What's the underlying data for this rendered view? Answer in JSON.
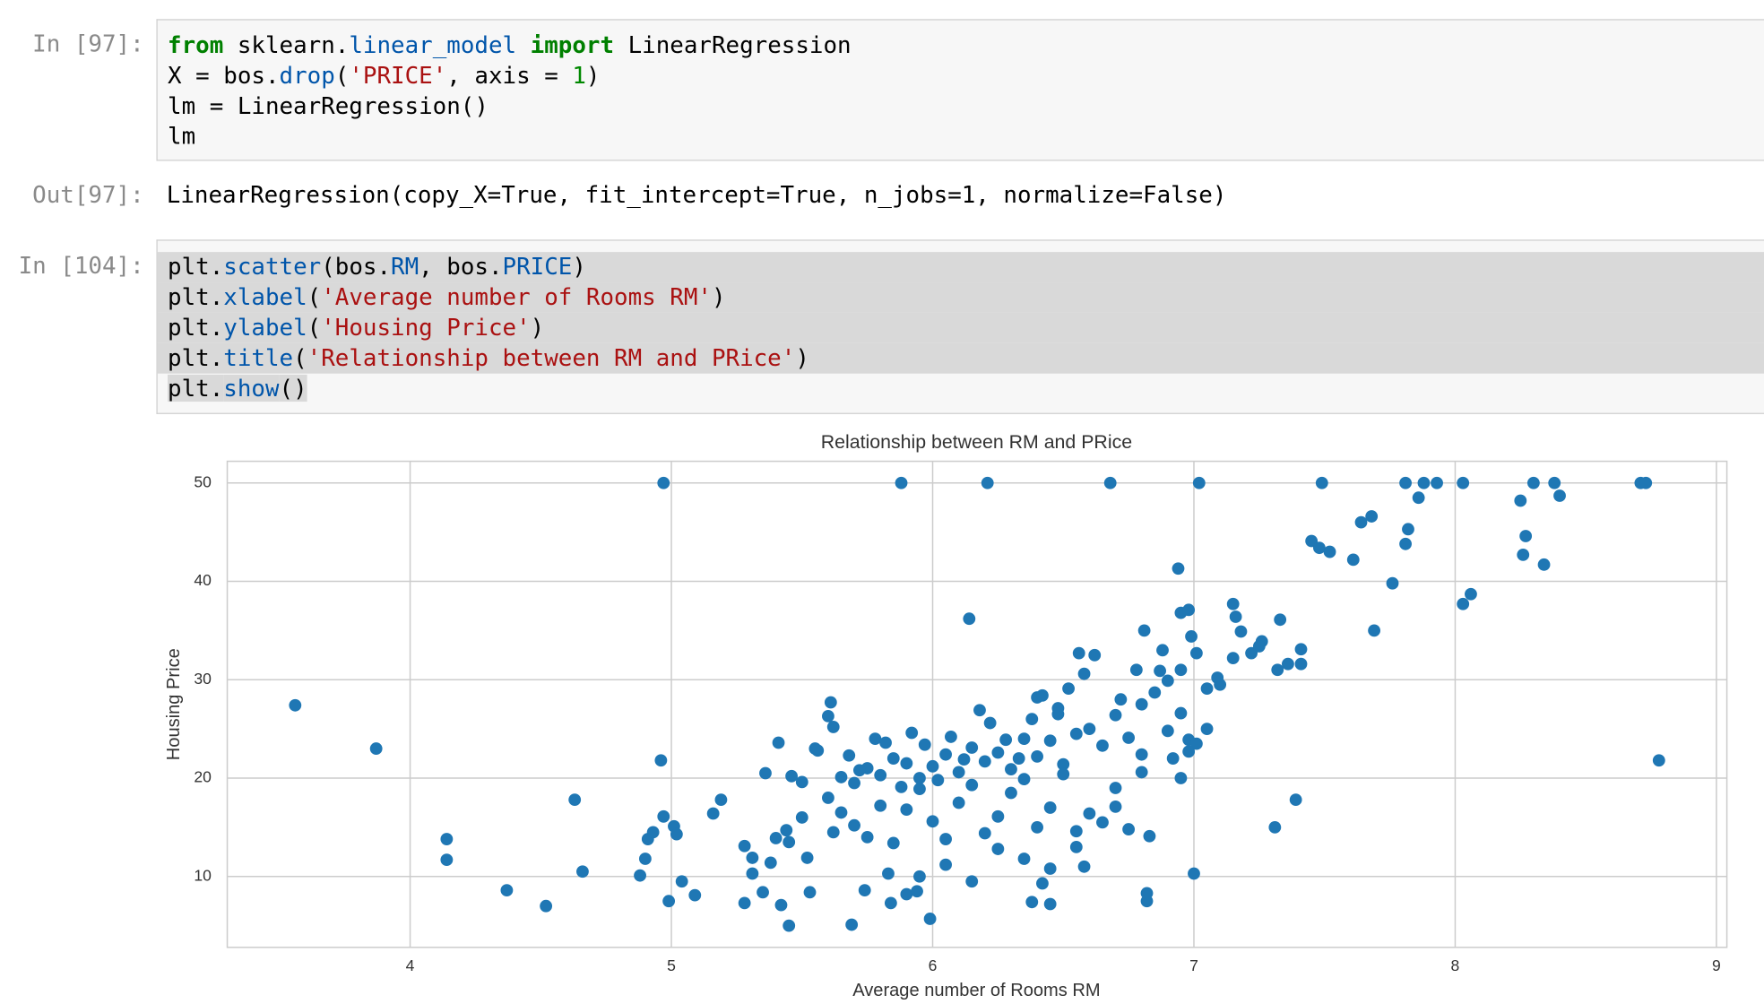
{
  "cells": [
    {
      "prompt": "In [97]:",
      "code": [
        [
          {
            "t": "from",
            "c": "#008000",
            "b": true
          },
          {
            "t": " sklearn.",
            "c": "#000000"
          },
          {
            "t": "linear_model",
            "c": "#0055aa"
          },
          {
            "t": " ",
            "c": "#000000"
          },
          {
            "t": "import",
            "c": "#008000",
            "b": true
          },
          {
            "t": " LinearRegression",
            "c": "#000000"
          }
        ],
        [
          {
            "t": "X = bos.",
            "c": "#000000"
          },
          {
            "t": "drop",
            "c": "#0055aa"
          },
          {
            "t": "(",
            "c": "#000000"
          },
          {
            "t": "'PRICE'",
            "c": "#aa1111"
          },
          {
            "t": ", axis = ",
            "c": "#000000"
          },
          {
            "t": "1",
            "c": "#008800"
          },
          {
            "t": ")",
            "c": "#000000"
          }
        ],
        [
          {
            "t": "lm = LinearRegression()",
            "c": "#000000"
          }
        ],
        [
          {
            "t": "lm",
            "c": "#000000"
          }
        ]
      ]
    },
    {
      "prompt": "Out[97]:",
      "output": "LinearRegression(copy_X=True, fit_intercept=True, n_jobs=1, normalize=False)"
    },
    {
      "prompt": "In [104]:",
      "code": [
        [
          {
            "t": "plt.",
            "c": "#000000"
          },
          {
            "t": "scatter",
            "c": "#0055aa"
          },
          {
            "t": "(bos.",
            "c": "#000000"
          },
          {
            "t": "RM",
            "c": "#0055aa"
          },
          {
            "t": ", bos.",
            "c": "#000000"
          },
          {
            "t": "PRICE",
            "c": "#0055aa"
          },
          {
            "t": ")",
            "c": "#000000"
          }
        ],
        [
          {
            "t": "plt.",
            "c": "#000000"
          },
          {
            "t": "xlabel",
            "c": "#0055aa"
          },
          {
            "t": "(",
            "c": "#000000"
          },
          {
            "t": "'Average number of Rooms RM'",
            "c": "#aa1111"
          },
          {
            "t": ")",
            "c": "#000000"
          }
        ],
        [
          {
            "t": "plt.",
            "c": "#000000"
          },
          {
            "t": "ylabel",
            "c": "#0055aa"
          },
          {
            "t": "(",
            "c": "#000000"
          },
          {
            "t": "'Housing Price'",
            "c": "#aa1111"
          },
          {
            "t": ")",
            "c": "#000000"
          }
        ],
        [
          {
            "t": "plt.",
            "c": "#000000"
          },
          {
            "t": "title",
            "c": "#0055aa"
          },
          {
            "t": "(",
            "c": "#000000"
          },
          {
            "t": "'Relationship between RM and PRice'",
            "c": "#aa1111"
          },
          {
            "t": ")",
            "c": "#000000"
          }
        ],
        [
          {
            "t": "plt.",
            "c": "#000000"
          },
          {
            "t": "show",
            "c": "#0055aa"
          },
          {
            "t": "()",
            "c": "#000000"
          }
        ]
      ]
    }
  ],
  "chart_data": {
    "type": "scatter",
    "title": "Relationship between RM and PRice",
    "xlabel": "Average number of Rooms RM",
    "ylabel": "Housing Price",
    "color": "#1f77b4",
    "grid": true,
    "xlim": [
      3.3,
      9.04
    ],
    "ylim": [
      2.8,
      52.2
    ],
    "xticks": [
      4,
      5,
      6,
      7,
      8,
      9
    ],
    "yticks": [
      10,
      20,
      30,
      40,
      50
    ],
    "x": [
      3.56,
      3.87,
      4.14,
      4.14,
      4.37,
      4.52,
      4.63,
      4.66,
      4.88,
      4.9,
      4.91,
      4.93,
      4.96,
      4.97,
      4.99,
      5.01,
      5.02,
      5.04,
      5.09,
      5.16,
      5.19,
      5.28,
      5.28,
      5.31,
      5.31,
      5.35,
      5.36,
      5.38,
      5.4,
      5.41,
      5.42,
      5.44,
      5.45,
      5.46,
      5.52,
      5.53,
      5.56,
      5.61,
      5.6,
      5.62,
      5.65,
      5.69,
      5.74,
      5.83,
      5.84,
      5.9,
      5.94,
      5.99,
      5.88,
      6.14,
      4.97,
      6.21,
      6.68,
      7.02,
      7.49,
      7.81,
      7.88,
      7.93,
      8.03,
      8.3,
      8.38,
      8.71,
      8.73,
      8.78,
      8.4,
      8.25,
      8.27,
      8.26,
      8.34,
      7.86,
      7.82,
      7.81,
      7.68,
      7.64,
      7.76,
      7.69,
      7.61,
      7.45,
      7.48,
      7.52,
      8.06,
      8.03,
      6.94,
      7.41,
      7.41,
      7.36,
      7.32,
      7.39,
      7.31,
      7.0,
      6.82,
      6.82,
      6.83,
      6.95,
      6.98,
      7.15,
      7.16,
      7.33,
      6.99,
      6.81,
      6.87,
      6.95,
      6.98,
      7.01,
      7.05,
      7.09,
      7.15,
      7.22,
      7.26,
      7.01,
      6.56,
      6.48,
      6.4,
      5.6,
      5.7,
      5.75,
      5.8,
      5.85,
      5.9,
      5.95,
      6.0,
      6.05,
      6.1,
      6.15,
      6.2,
      6.25,
      6.3,
      6.35,
      6.4,
      6.45,
      6.5,
      6.55,
      6.6,
      6.65,
      6.7,
      6.75,
      6.8,
      6.85,
      6.9,
      6.95,
      5.65,
      5.7,
      5.75,
      5.8,
      5.85,
      5.9,
      5.95,
      6.0,
      6.05,
      6.1,
      6.15,
      6.2,
      6.25,
      6.3,
      6.35,
      6.4,
      6.45,
      6.5,
      6.55,
      6.6,
      6.7,
      6.8,
      6.9,
      5.5,
      5.55,
      5.62,
      5.68,
      5.72,
      5.78,
      5.82,
      5.88,
      5.92,
      5.97,
      6.02,
      6.07,
      6.12,
      6.18,
      6.22,
      6.28,
      6.33,
      6.38,
      6.42,
      6.48,
      6.52,
      6.58,
      6.62,
      6.72,
      6.78,
      6.88,
      5.45,
      5.5,
      6.25,
      6.35,
      6.45,
      6.55,
      6.65,
      6.75,
      6.15,
      6.05,
      5.95,
      6.38,
      6.45,
      6.42,
      6.58,
      7.18,
      7.25,
      7.05,
      7.1,
      6.95,
      6.98,
      6.8,
      6.7,
      6.92
    ],
    "values": [
      27.4,
      23.0,
      13.8,
      11.7,
      8.6,
      7.0,
      17.8,
      10.5,
      10.1,
      11.8,
      13.8,
      14.5,
      21.8,
      16.1,
      7.5,
      15.1,
      14.3,
      9.5,
      8.1,
      16.4,
      17.8,
      13.1,
      7.3,
      11.9,
      10.3,
      8.4,
      20.5,
      11.4,
      13.9,
      23.6,
      7.1,
      14.7,
      5.0,
      20.2,
      11.9,
      8.4,
      22.8,
      27.7,
      26.3,
      14.5,
      20.1,
      5.1,
      8.6,
      10.3,
      7.3,
      8.2,
      8.5,
      5.7,
      50,
      36.2,
      50,
      50,
      50,
      50,
      50,
      50,
      50,
      50,
      50,
      50,
      50,
      50,
      50,
      21.8,
      48.7,
      48.2,
      44.6,
      42.7,
      41.7,
      48.5,
      45.3,
      43.8,
      46.6,
      46.0,
      39.8,
      35.0,
      42.2,
      44.1,
      43.4,
      43.0,
      38.7,
      37.7,
      41.3,
      33.1,
      31.6,
      31.6,
      31.0,
      17.8,
      15.0,
      10.3,
      7.5,
      8.3,
      14.1,
      36.8,
      37.1,
      37.7,
      36.4,
      36.1,
      34.4,
      35.0,
      30.9,
      26.6,
      23.9,
      23.5,
      25.0,
      30.2,
      32.2,
      32.7,
      33.9,
      32.7,
      32.7,
      26.5,
      28.2,
      18.0,
      19.5,
      21.0,
      20.3,
      22.0,
      21.5,
      20.0,
      21.2,
      22.4,
      20.6,
      23.1,
      21.7,
      22.6,
      20.9,
      24.0,
      22.2,
      23.8,
      21.4,
      24.5,
      25.0,
      23.3,
      26.4,
      24.1,
      27.5,
      28.7,
      29.9,
      31.0,
      16.5,
      15.2,
      14.0,
      17.2,
      13.4,
      16.8,
      18.9,
      15.6,
      13.8,
      17.5,
      19.3,
      14.4,
      16.1,
      18.5,
      19.9,
      15.0,
      17.0,
      20.4,
      14.6,
      16.4,
      19.0,
      22.4,
      24.8,
      19.6,
      23.0,
      25.2,
      22.3,
      20.8,
      24.0,
      23.6,
      19.1,
      24.6,
      23.4,
      19.8,
      24.2,
      21.9,
      26.9,
      25.6,
      23.9,
      22.0,
      26.0,
      28.4,
      27.1,
      29.1,
      30.6,
      32.5,
      28.0,
      31.0,
      33.0,
      13.5,
      16.0,
      12.8,
      11.8,
      10.8,
      13.0,
      15.5,
      14.8,
      9.5,
      11.2,
      10.0,
      7.4,
      7.2,
      9.3,
      11.0,
      34.9,
      33.4,
      29.1,
      29.5,
      20.0,
      22.7,
      20.6,
      17.1,
      22.0
    ]
  }
}
